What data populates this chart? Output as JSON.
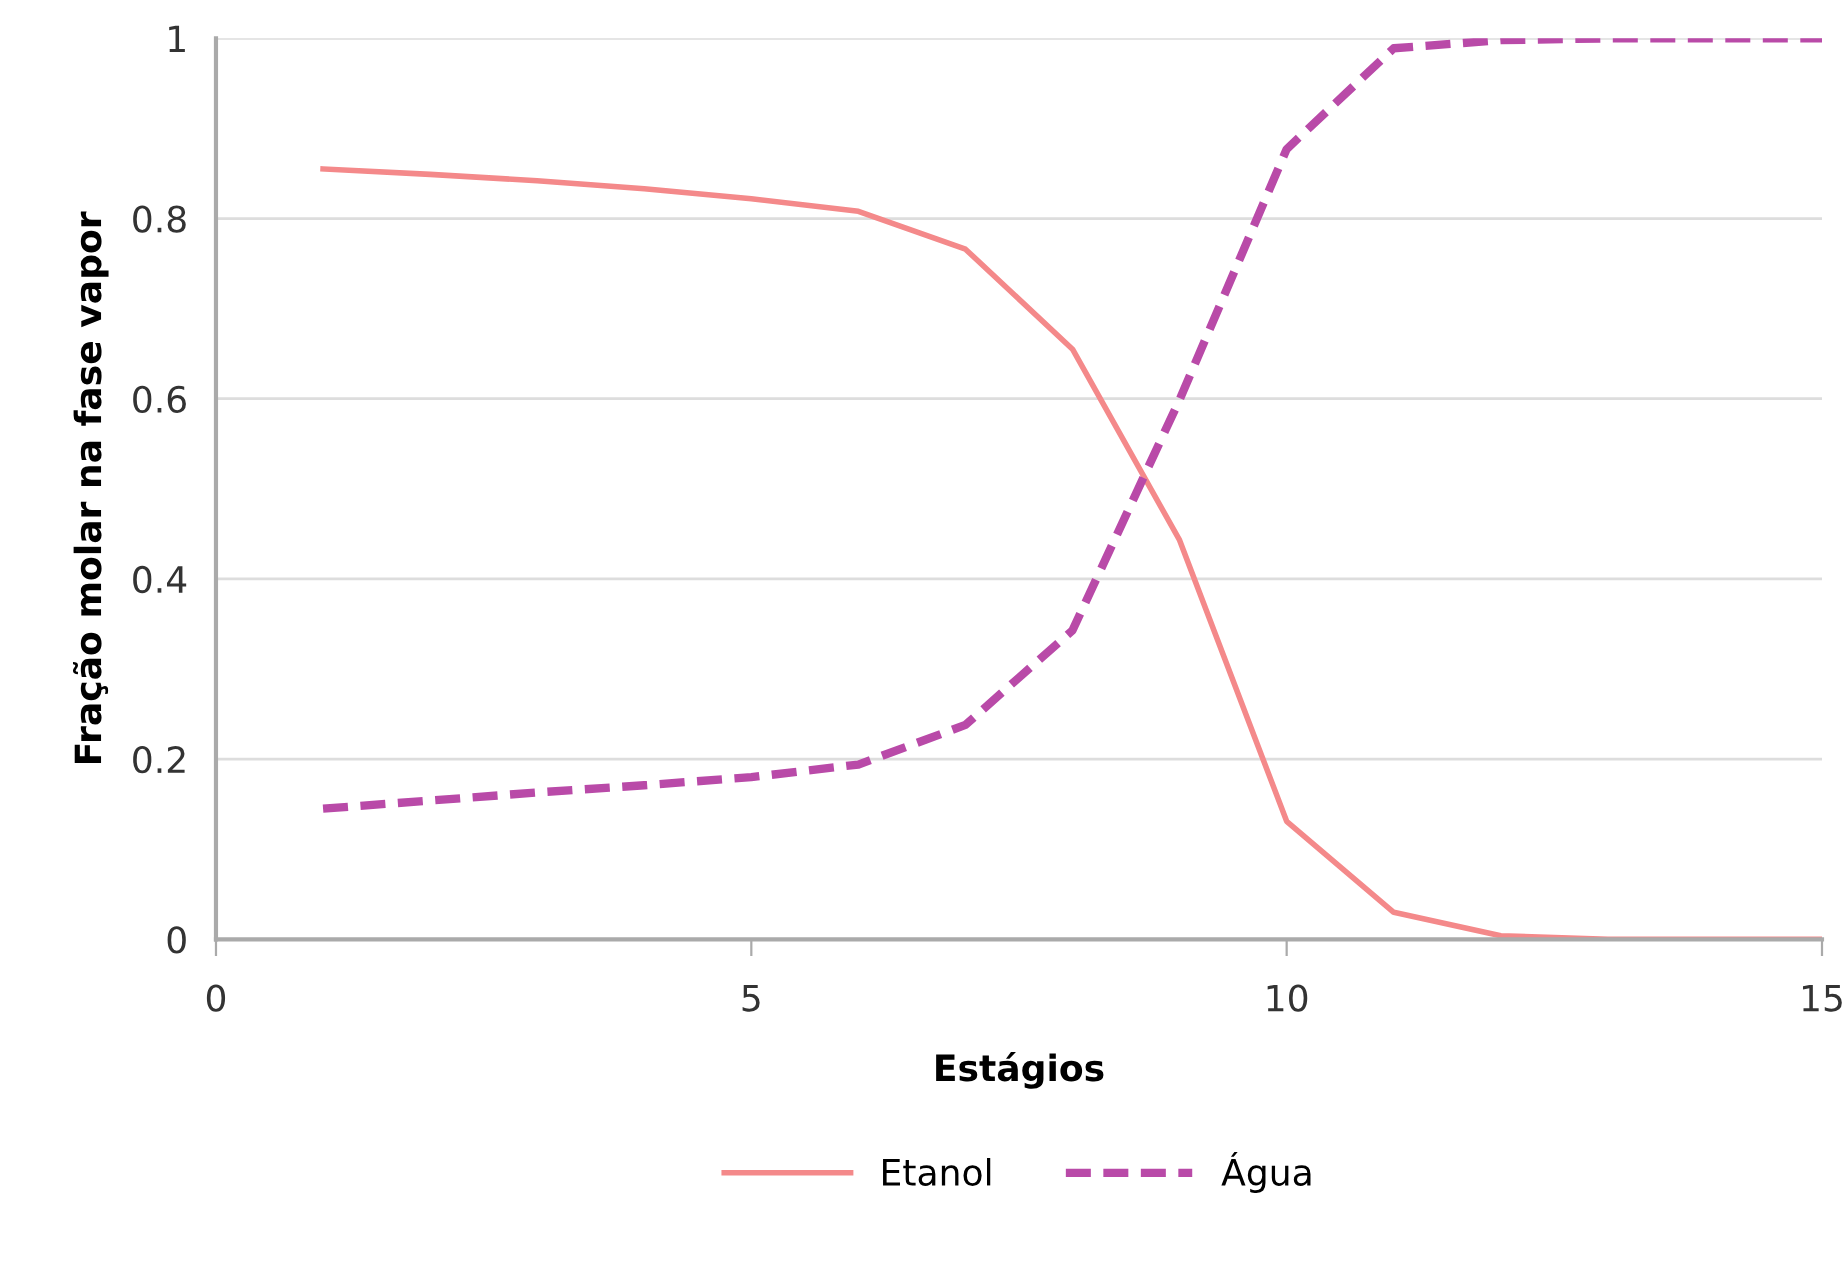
{
  "chart_data": {
    "type": "line",
    "xlabel": "Estágios",
    "ylabel": "Fração molar na fase vapor",
    "x": [
      1,
      2,
      3,
      4,
      5,
      6,
      7,
      8,
      9,
      10,
      11,
      12,
      13,
      14,
      15
    ],
    "series": [
      {
        "name": "Etanol",
        "color": "#f4898a",
        "line_style": "solid",
        "values": [
          0.855,
          0.849,
          0.842,
          0.833,
          0.822,
          0.808,
          0.766,
          0.655,
          0.443,
          0.131,
          0.03,
          0.004,
          0,
          0,
          0
        ]
      },
      {
        "name": "Água",
        "color": "#b94aa8",
        "line_style": "dashed",
        "values": [
          0.145,
          0.154,
          0.163,
          0.171,
          0.18,
          0.194,
          0.238,
          0.343,
          0.599,
          0.877,
          0.989,
          0.998,
          1,
          1,
          1
        ]
      }
    ],
    "xlim": [
      0,
      15
    ],
    "xticks": [
      0,
      5,
      10,
      15
    ],
    "ylim": [
      0,
      1
    ],
    "yticks": [
      0,
      0.2,
      0.4,
      0.6,
      0.8,
      1
    ],
    "grid": "y",
    "legend": "bottom",
    "marker": "none"
  }
}
